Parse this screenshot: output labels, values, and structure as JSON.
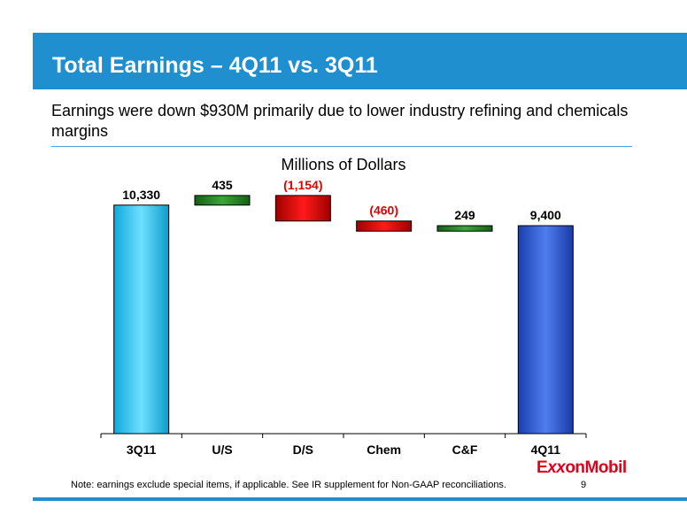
{
  "title": "Total Earnings – 4Q11 vs. 3Q11",
  "subtitle": "Earnings were down $930M primarily due to lower industry refining and chemicals margins",
  "note": "Note: earnings exclude special items, if applicable. See IR supplement for Non-GAAP reconciliations.",
  "page_number": "9",
  "logo_text": "ExxonMobil",
  "colors": {
    "title_bar": "#1f8fd0",
    "start_bar": "#29c4f0",
    "end_bar": "#2d57d6",
    "increase": "#2f8f2f",
    "decrease": "#e00000",
    "negative_label": "#e00000",
    "logo": "#e3001b"
  },
  "chart_data": {
    "type": "bar",
    "subtype": "waterfall",
    "ylabel": "Millions of Dollars",
    "categories": [
      "3Q11",
      "U/S",
      "D/S",
      "Chem",
      "C&F",
      "4Q11"
    ],
    "values": [
      10330,
      435,
      -1154,
      -460,
      249,
      9400
    ],
    "kinds": [
      "total",
      "delta",
      "delta",
      "delta",
      "delta",
      "total"
    ],
    "labels": [
      "10,330",
      "435",
      "(1,154)",
      "(460)",
      "249",
      "9,400"
    ],
    "grid": false,
    "legend": "none"
  }
}
